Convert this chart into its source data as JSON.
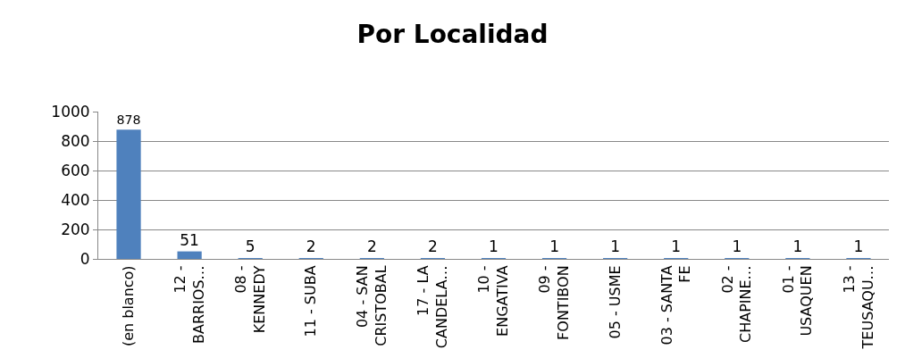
{
  "chart_data": {
    "type": "bar",
    "title": "Por Localidad",
    "categories": [
      "(en blanco)",
      "12 -\nBARRIOS…",
      "08 -\nKENNEDY",
      "11 - SUBA",
      "04 - SAN\nCRISTOBAL",
      "17 - LA\nCANDELA…",
      "10 -\nENGATIVA",
      "09 -\nFONTIBON",
      "05 - USME",
      "03 - SANTA\nFE",
      "02 -\nCHAPINE…",
      "01 -\nUSAQUEN",
      "13 -\nTEUSAQU…"
    ],
    "values": [
      878,
      51,
      5,
      2,
      2,
      2,
      1,
      1,
      1,
      1,
      1,
      1,
      1
    ],
    "color": "#4f81bd",
    "ylim": [
      0,
      1000
    ],
    "yticks": [
      0,
      200,
      400,
      600,
      800,
      1000
    ],
    "grid": "y",
    "data_labels": true,
    "legend": false
  }
}
